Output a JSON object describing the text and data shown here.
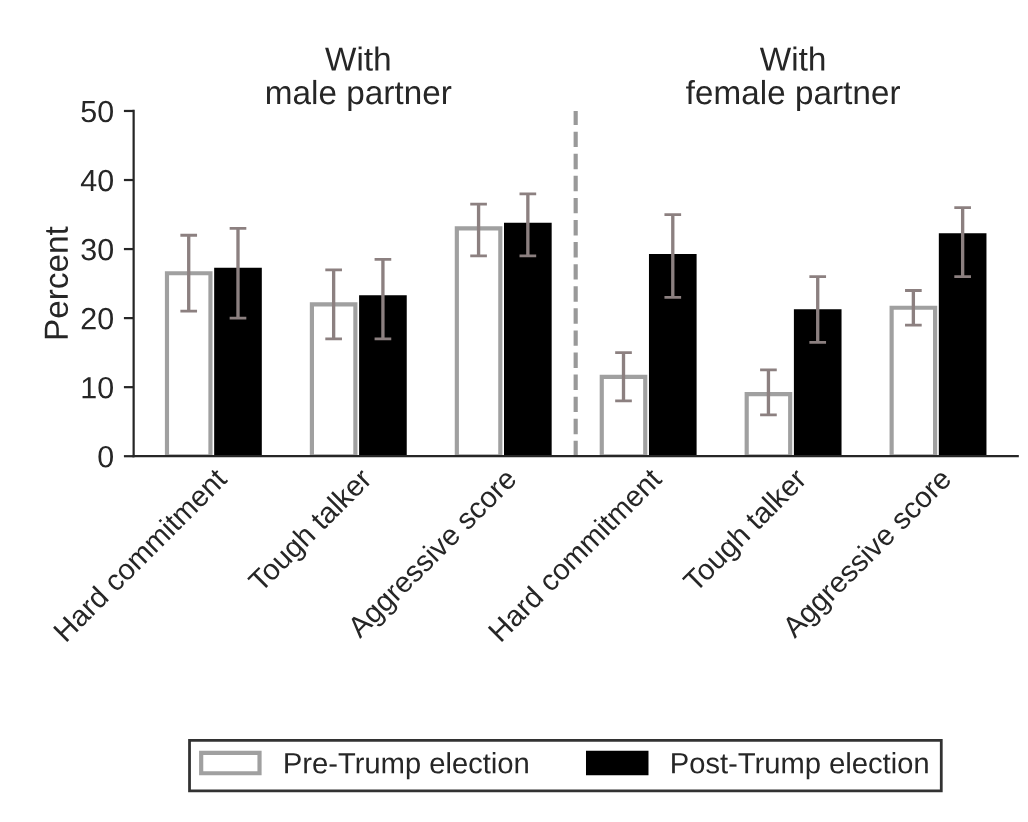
{
  "chart_data": {
    "type": "bar",
    "ylabel": "Percent",
    "categories": [
      "Hard commitment",
      "Tough talker",
      "Aggressive score",
      "Hard commitment",
      "Tough talker",
      "Aggressive score"
    ],
    "series": [
      {
        "name": "Pre-Trump election",
        "color": "#a0a0a0",
        "values": [
          26.5,
          22,
          33,
          11.5,
          9,
          21.5
        ],
        "errors": [
          [
            21,
            32
          ],
          [
            17,
            27
          ],
          [
            29,
            36.5
          ],
          [
            8,
            15
          ],
          [
            6,
            12.5
          ],
          [
            19,
            24
          ]
        ]
      },
      {
        "name": "Post-Trump election",
        "color": "#000000",
        "values": [
          27,
          23,
          33.5,
          29,
          21,
          32
        ],
        "errors": [
          [
            20,
            33
          ],
          [
            17,
            28.5
          ],
          [
            29,
            38
          ],
          [
            23,
            35
          ],
          [
            16.5,
            26
          ],
          [
            26,
            36
          ]
        ]
      }
    ],
    "ylim": [
      0,
      50
    ],
    "yticks": [
      0,
      10,
      20,
      30,
      40,
      50
    ],
    "grid": false,
    "legend": "bottom",
    "annotations": [
      "With\nmale partner",
      "With\nfemale partner"
    ]
  }
}
